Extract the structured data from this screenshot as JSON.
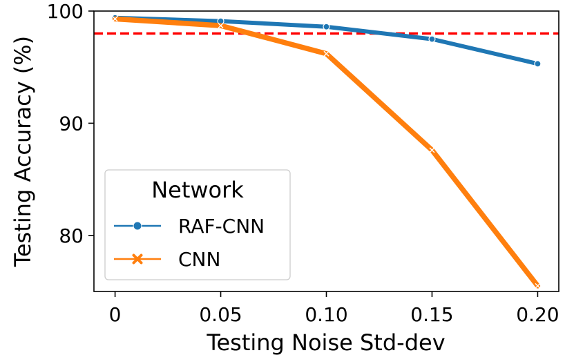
{
  "chart_data": {
    "type": "line",
    "title": "",
    "xlabel": "Testing Noise Std-dev",
    "ylabel": "Testing Accuracy (%)",
    "x": [
      0,
      0.05,
      0.1,
      0.15,
      0.2
    ],
    "x_tick_labels": [
      "0",
      "0.05",
      "0.10",
      "0.15",
      "0.20"
    ],
    "xlim": [
      -0.01,
      0.21
    ],
    "ylim": [
      75,
      100
    ],
    "y_ticks": [
      80,
      90,
      100
    ],
    "y_tick_labels": [
      "80",
      "90",
      "100"
    ],
    "grid": false,
    "legend": {
      "title": "Network",
      "position": "lower-left"
    },
    "series": [
      {
        "name": "RAF-CNN",
        "color": "#1f77b4",
        "marker": "circle",
        "values": [
          99.4,
          99.1,
          98.6,
          97.5,
          95.3
        ]
      },
      {
        "name": "CNN",
        "color": "#ff7f0e",
        "marker": "x",
        "values": [
          99.3,
          98.7,
          96.2,
          87.6,
          75.5
        ]
      }
    ],
    "reference_line": {
      "y": 98.0,
      "color": "#ff0000",
      "style": "dashed"
    }
  }
}
